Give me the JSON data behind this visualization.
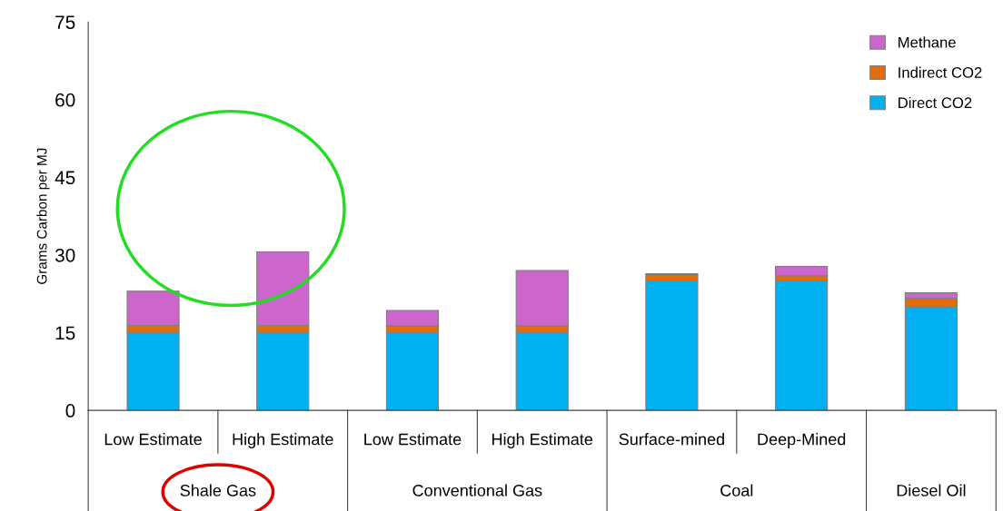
{
  "chart_data": {
    "type": "bar",
    "stacked": true,
    "ylabel": "Grams Carbon per MJ",
    "categories": [
      "Low Estimate",
      "High Estimate",
      "Low Estimate",
      "High Estimate",
      "Surface-mined",
      "Deep-Mined",
      null
    ],
    "series": [
      {
        "name": "Direct CO2",
        "color": "#00b0f0",
        "values": [
          15,
          15,
          15,
          15,
          25,
          25,
          20
        ]
      },
      {
        "name": "Indirect CO2",
        "color": "#e36c0a",
        "values": [
          1.4,
          1.4,
          1.3,
          1.3,
          1.2,
          1.0,
          1.6
        ]
      },
      {
        "name": "Methane",
        "color": "#cc66cc",
        "values": [
          6.6,
          14.2,
          3.0,
          10.7,
          0.2,
          1.8,
          1.1
        ]
      }
    ],
    "ylim": [
      0,
      75
    ],
    "yticks": [
      0,
      15,
      30,
      45,
      60,
      75
    ],
    "grid": false,
    "legend": "top right",
    "annotations": [
      "Shale Gas",
      "Conventional Gas",
      "Coal",
      "Diesel Oil"
    ]
  }
}
